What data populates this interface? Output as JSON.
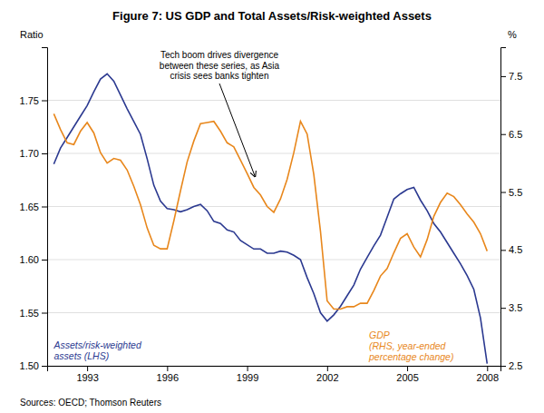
{
  "chart_data": {
    "type": "line",
    "title": "Figure 7: US GDP and Total Assets/Risk-weighted Assets",
    "source": "Sources:  OECD; Thomson Reuters",
    "ylabel": "Ratio",
    "y2label": "%",
    "x": [
      1991.75,
      1992.0,
      1992.25,
      1992.5,
      1992.75,
      1993.0,
      1993.25,
      1993.5,
      1993.75,
      1994.0,
      1994.25,
      1994.5,
      1994.75,
      1995.0,
      1995.25,
      1995.5,
      1995.75,
      1996.0,
      1996.25,
      1996.5,
      1996.75,
      1997.0,
      1997.25,
      1997.5,
      1997.75,
      1998.0,
      1998.25,
      1998.5,
      1998.75,
      1999.0,
      1999.25,
      1999.5,
      1999.75,
      2000.0,
      2000.25,
      2000.5,
      2000.75,
      2001.0,
      2001.25,
      2001.5,
      2001.75,
      2002.0,
      2002.25,
      2002.5,
      2002.75,
      2003.0,
      2003.25,
      2003.5,
      2003.75,
      2004.0,
      2004.25,
      2004.5,
      2004.75,
      2005.0,
      2005.25,
      2005.5,
      2005.75,
      2006.0,
      2006.25,
      2006.5,
      2006.75,
      2007.0,
      2007.25,
      2007.5,
      2007.75,
      2008.0
    ],
    "series": [
      {
        "name": "Assets/risk-weighted\nassets (LHS)",
        "color": "#2B3990",
        "axis": "y",
        "values": [
          1.69,
          1.705,
          1.715,
          1.725,
          1.735,
          1.745,
          1.758,
          1.77,
          1.775,
          1.768,
          1.755,
          1.742,
          1.73,
          1.718,
          1.695,
          1.67,
          1.655,
          1.648,
          1.647,
          1.645,
          1.647,
          1.65,
          1.652,
          1.646,
          1.636,
          1.634,
          1.628,
          1.626,
          1.618,
          1.614,
          1.61,
          1.61,
          1.606,
          1.606,
          1.608,
          1.607,
          1.604,
          1.6,
          1.583,
          1.568,
          1.55,
          1.542,
          1.548,
          1.556,
          1.566,
          1.576,
          1.591,
          1.602,
          1.613,
          1.623,
          1.64,
          1.657,
          1.662,
          1.666,
          1.668,
          1.656,
          1.646,
          1.634,
          1.626,
          1.616,
          1.606,
          1.596,
          1.585,
          1.572,
          1.545,
          1.502
        ]
      },
      {
        "name": "GDP\n(RHS, year-ended\npercentage change)",
        "color": "#E8871C",
        "axis": "y2",
        "values": [
          6.85,
          6.58,
          6.35,
          6.32,
          6.55,
          6.7,
          6.52,
          6.18,
          6.0,
          6.08,
          6.05,
          5.88,
          5.6,
          5.28,
          4.88,
          4.58,
          4.52,
          4.52,
          5.0,
          5.52,
          6.02,
          6.38,
          6.68,
          6.7,
          6.72,
          6.55,
          6.35,
          6.28,
          6.05,
          5.82,
          5.58,
          5.45,
          5.25,
          5.15,
          5.38,
          5.72,
          6.18,
          6.72,
          6.5,
          5.8,
          4.82,
          3.62,
          3.48,
          3.48,
          3.52,
          3.52,
          3.58,
          3.58,
          3.8,
          4.05,
          4.18,
          4.45,
          4.7,
          4.78,
          4.55,
          4.38,
          4.68,
          5.08,
          5.32,
          5.48,
          5.42,
          5.28,
          5.12,
          4.98,
          4.78,
          4.48
        ]
      }
    ],
    "xlim": [
      1991.5,
      2008.5
    ],
    "xticks": [
      1993,
      1996,
      1999,
      2002,
      2005,
      2008
    ],
    "ylim": [
      1.5,
      1.8
    ],
    "yticks": [
      {
        "value": 1.5,
        "label": "1.50"
      },
      1.55,
      {
        "value": 1.6,
        "label": "1.60"
      },
      1.65,
      {
        "value": 1.7,
        "label": "1.70"
      },
      1.75
    ],
    "y2lim": [
      2.5,
      8.0
    ],
    "y2ticks": [
      2.5,
      3.5,
      4.5,
      5.5,
      6.5,
      7.5
    ],
    "grid": true,
    "annotations": [
      {
        "text": "Tech boom drives divergence\nbetween these series, as Asia\ncrisis sees banks tighten",
        "x": 1999.3,
        "y": 1.678
      }
    ]
  }
}
